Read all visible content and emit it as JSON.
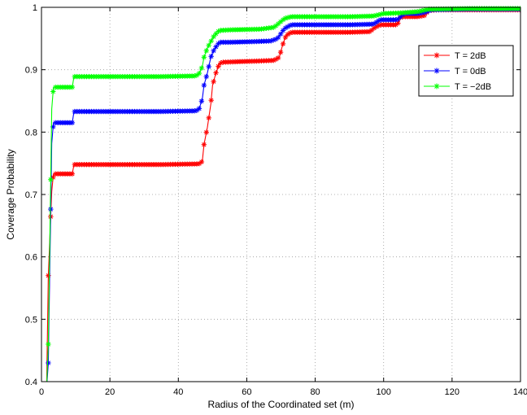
{
  "chart_data": {
    "type": "line",
    "title": "",
    "xlabel": "Radius of the Coordinated set (m)",
    "ylabel": "Coverage Probability",
    "xlim": [
      0,
      140
    ],
    "ylim": [
      0.4,
      1.0
    ],
    "xticks": [
      0,
      20,
      40,
      60,
      80,
      100,
      120,
      140
    ],
    "yticks": [
      0.4,
      0.5,
      0.6,
      0.7,
      0.8,
      0.9,
      1.0
    ],
    "xtick_labels": [
      "0",
      "20",
      "40",
      "60",
      "80",
      "100",
      "120",
      "140"
    ],
    "ytick_labels": [
      "0.4",
      "0.5",
      "0.6",
      "0.7",
      "0.8",
      "0.9",
      "1"
    ],
    "grid": true,
    "legend_position": "top-right",
    "marker": "asterisk",
    "series": [
      {
        "name": "T = 2dB",
        "color": "#ff0000",
        "points": [
          [
            1.5,
            0.39
          ],
          [
            2.0,
            0.57
          ],
          [
            3.0,
            0.705
          ],
          [
            3.5,
            0.733
          ],
          [
            6.0,
            0.733
          ],
          [
            9.0,
            0.733
          ],
          [
            9.5,
            0.748
          ],
          [
            15.0,
            0.748
          ],
          [
            25.0,
            0.748
          ],
          [
            35.0,
            0.748
          ],
          [
            46.0,
            0.749
          ],
          [
            47.0,
            0.753
          ],
          [
            47.5,
            0.78
          ],
          [
            48.5,
            0.808
          ],
          [
            49.5,
            0.845
          ],
          [
            50.0,
            0.875
          ],
          [
            51.0,
            0.895
          ],
          [
            52.0,
            0.91
          ],
          [
            53.0,
            0.912
          ],
          [
            58.0,
            0.913
          ],
          [
            64.0,
            0.914
          ],
          [
            68.0,
            0.915
          ],
          [
            69.5,
            0.92
          ],
          [
            70.5,
            0.94
          ],
          [
            71.5,
            0.955
          ],
          [
            73.0,
            0.96
          ],
          [
            80.0,
            0.96
          ],
          [
            90.0,
            0.96
          ],
          [
            96.0,
            0.961
          ],
          [
            97.5,
            0.968
          ],
          [
            99.0,
            0.972
          ],
          [
            104.0,
            0.972
          ],
          [
            105.0,
            0.985
          ],
          [
            110.0,
            0.985
          ],
          [
            112.0,
            0.987
          ],
          [
            113.0,
            0.995
          ],
          [
            116.0,
            0.996
          ],
          [
            125.0,
            0.996
          ],
          [
            135.0,
            0.996
          ],
          [
            140.0,
            0.996
          ]
        ]
      },
      {
        "name": "T = 0dB",
        "color": "#0000ff",
        "points": [
          [
            1.5,
            0.39
          ],
          [
            2.0,
            0.43
          ],
          [
            3.0,
            0.782
          ],
          [
            3.5,
            0.815
          ],
          [
            6.0,
            0.815
          ],
          [
            9.0,
            0.815
          ],
          [
            9.5,
            0.833
          ],
          [
            15.0,
            0.833
          ],
          [
            25.0,
            0.833
          ],
          [
            35.0,
            0.833
          ],
          [
            45.0,
            0.834
          ],
          [
            46.0,
            0.836
          ],
          [
            47.0,
            0.853
          ],
          [
            47.5,
            0.875
          ],
          [
            48.5,
            0.895
          ],
          [
            49.5,
            0.92
          ],
          [
            50.5,
            0.933
          ],
          [
            52.0,
            0.944
          ],
          [
            55.0,
            0.944
          ],
          [
            62.0,
            0.945
          ],
          [
            67.0,
            0.946
          ],
          [
            69.0,
            0.95
          ],
          [
            70.0,
            0.958
          ],
          [
            71.0,
            0.966
          ],
          [
            73.0,
            0.972
          ],
          [
            80.0,
            0.972
          ],
          [
            90.0,
            0.972
          ],
          [
            97.0,
            0.973
          ],
          [
            99.0,
            0.98
          ],
          [
            104.0,
            0.98
          ],
          [
            106.0,
            0.99
          ],
          [
            110.0,
            0.99
          ],
          [
            112.0,
            0.992
          ],
          [
            114.0,
            0.996
          ],
          [
            125.0,
            0.997
          ],
          [
            140.0,
            0.997
          ]
        ]
      },
      {
        "name": "T = −2dB",
        "color": "#00ff00",
        "points": [
          [
            1.5,
            0.39
          ],
          [
            2.0,
            0.46
          ],
          [
            3.0,
            0.837
          ],
          [
            3.5,
            0.872
          ],
          [
            6.0,
            0.872
          ],
          [
            9.0,
            0.872
          ],
          [
            9.5,
            0.889
          ],
          [
            15.0,
            0.889
          ],
          [
            25.0,
            0.889
          ],
          [
            35.0,
            0.889
          ],
          [
            45.0,
            0.89
          ],
          [
            46.0,
            0.893
          ],
          [
            47.0,
            0.905
          ],
          [
            47.5,
            0.92
          ],
          [
            48.5,
            0.935
          ],
          [
            49.5,
            0.945
          ],
          [
            50.5,
            0.955
          ],
          [
            52.0,
            0.963
          ],
          [
            56.0,
            0.964
          ],
          [
            64.0,
            0.965
          ],
          [
            68.0,
            0.968
          ],
          [
            69.5,
            0.975
          ],
          [
            71.0,
            0.982
          ],
          [
            73.0,
            0.985
          ],
          [
            80.0,
            0.985
          ],
          [
            90.0,
            0.985
          ],
          [
            97.0,
            0.986
          ],
          [
            100.0,
            0.99
          ],
          [
            105.0,
            0.991
          ],
          [
            110.0,
            0.993
          ],
          [
            113.0,
            0.997
          ],
          [
            125.0,
            0.998
          ],
          [
            140.0,
            0.998
          ]
        ]
      }
    ]
  }
}
